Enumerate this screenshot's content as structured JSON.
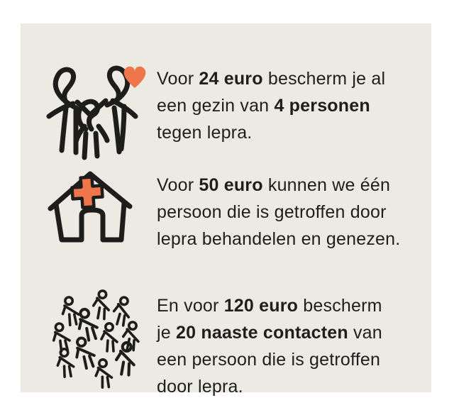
{
  "colors": {
    "page_background": "#ffffff",
    "panel_background": "#EDEAE4",
    "text": "#1E1E1C",
    "accent_orange": "#EE764A",
    "line_art": "#1D1D1B"
  },
  "panel": {
    "name": "donation-impact-infographic"
  },
  "rows": [
    {
      "icon": "family-with-heart-icon",
      "lines": [
        [
          {
            "t": "Voor ",
            "b": false
          },
          {
            "t": "24 euro",
            "b": true
          },
          {
            "t": " bescherm je al",
            "b": false
          }
        ],
        [
          {
            "t": "een gezin van ",
            "b": false
          },
          {
            "t": "4 personen",
            "b": true
          }
        ],
        [
          {
            "t": "tegen lepra.",
            "b": false
          }
        ]
      ]
    },
    {
      "icon": "clinic-house-with-cross-icon",
      "lines": [
        [
          {
            "t": "Voor ",
            "b": false
          },
          {
            "t": "50 euro",
            "b": true
          },
          {
            "t": " kunnen we één",
            "b": false
          }
        ],
        [
          {
            "t": "persoon die is getroffen door",
            "b": false
          }
        ],
        [
          {
            "t": "lepra behandelen en genezen.",
            "b": false
          }
        ]
      ]
    },
    {
      "icon": "crowd-of-people-icon",
      "lines": [
        [
          {
            "t": "En voor ",
            "b": false
          },
          {
            "t": "120 euro",
            "b": true
          },
          {
            "t": " bescherm",
            "b": false
          }
        ],
        [
          {
            "t": "je ",
            "b": false
          },
          {
            "t": "20 naaste contacten",
            "b": true
          },
          {
            "t": " van",
            "b": false
          }
        ],
        [
          {
            "t": "een persoon die is getroffen",
            "b": false
          }
        ],
        [
          {
            "t": "door lepra.",
            "b": false
          }
        ]
      ]
    }
  ]
}
